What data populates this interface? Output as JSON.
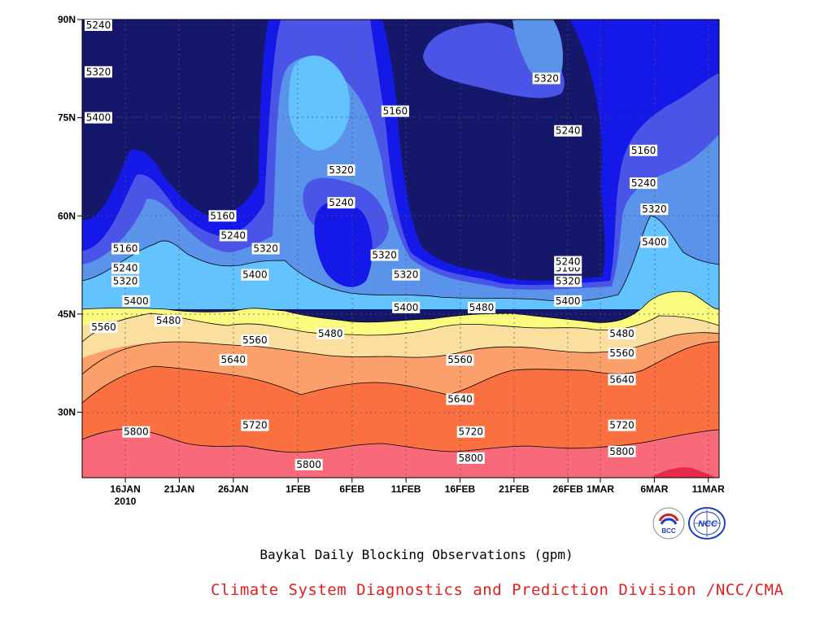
{
  "chart_data": {
    "type": "heatmap",
    "subtype": "filled-contour time-latitude section",
    "title": "Baykal Daily Blocking Observations (gpm)",
    "x_ticks": [
      "16JAN",
      "21JAN",
      "26JAN",
      "1FEB",
      "6FEB",
      "11FEB",
      "16FEB",
      "21FEB",
      "26FEB",
      "1MAR",
      "6MAR",
      "11MAR"
    ],
    "x_year_label": "2010",
    "x_range": [
      "2010-01-12",
      "2010-03-12"
    ],
    "y_ticks": [
      "30N",
      "45N",
      "60N",
      "75N",
      "90N"
    ],
    "y_range": [
      20,
      90
    ],
    "contour_levels": [
      5160,
      5240,
      5320,
      5400,
      5480,
      5560,
      5640,
      5720,
      5800
    ],
    "fill_colors": [
      "#15186a",
      "#1519e8",
      "#4a55e8",
      "#5b92ea",
      "#62c3ff",
      "#fbfb7f",
      "#fbdf9f",
      "#fba06b",
      "#fb7040",
      "#f86a7a",
      "#e82848"
    ],
    "contour_labels": [
      {
        "date": "2010-01-02",
        "lat": 90,
        "value": 5240
      },
      {
        "date": "2010-01-02",
        "lat": 82,
        "value": 5320
      },
      {
        "date": "2010-01-02",
        "lat": 75,
        "value": 5400
      },
      {
        "date": "2010-02-10",
        "lat": 76,
        "value": 5160
      },
      {
        "date": "2010-02-24",
        "lat": 81,
        "value": 5320
      },
      {
        "date": "2010-02-26",
        "lat": 73,
        "value": 5240
      },
      {
        "date": "2010-03-05",
        "lat": 70,
        "value": 5160
      },
      {
        "date": "2010-03-05",
        "lat": 65,
        "value": 5240
      },
      {
        "date": "2010-03-06",
        "lat": 61,
        "value": 5320
      },
      {
        "date": "2010-03-06",
        "lat": 56,
        "value": 5400
      },
      {
        "date": "2010-01-16",
        "lat": 55,
        "value": 5160
      },
      {
        "date": "2010-01-16",
        "lat": 52,
        "value": 5240
      },
      {
        "date": "2010-01-16",
        "lat": 50,
        "value": 5320
      },
      {
        "date": "2010-01-17",
        "lat": 47,
        "value": 5400
      },
      {
        "date": "2010-01-14",
        "lat": 43,
        "value": 5560
      },
      {
        "date": "2010-01-20",
        "lat": 44,
        "value": 5480
      },
      {
        "date": "2010-01-25",
        "lat": 60,
        "value": 5160
      },
      {
        "date": "2010-01-26",
        "lat": 57,
        "value": 5240
      },
      {
        "date": "2010-01-29",
        "lat": 55,
        "value": 5320
      },
      {
        "date": "2010-01-28",
        "lat": 51,
        "value": 5400
      },
      {
        "date": "2010-02-05",
        "lat": 67,
        "value": 5320
      },
      {
        "date": "2010-02-05",
        "lat": 62,
        "value": 5240
      },
      {
        "date": "2010-02-09",
        "lat": 54,
        "value": 5320
      },
      {
        "date": "2010-02-11",
        "lat": 51,
        "value": 5320
      },
      {
        "date": "2010-02-11",
        "lat": 46,
        "value": 5400
      },
      {
        "date": "2010-02-18",
        "lat": 46,
        "value": 5480
      },
      {
        "date": "2010-02-04",
        "lat": 42,
        "value": 5480
      },
      {
        "date": "2010-01-28",
        "lat": 41,
        "value": 5560
      },
      {
        "date": "2010-02-16",
        "lat": 38,
        "value": 5560
      },
      {
        "date": "2010-01-26",
        "lat": 38,
        "value": 5640
      },
      {
        "date": "2010-02-16",
        "lat": 32,
        "value": 5640
      },
      {
        "date": "2010-01-17",
        "lat": 27,
        "value": 5800
      },
      {
        "date": "2010-01-28",
        "lat": 28,
        "value": 5720
      },
      {
        "date": "2010-02-17",
        "lat": 27,
        "value": 5720
      },
      {
        "date": "2010-02-02",
        "lat": 22,
        "value": 5800
      },
      {
        "date": "2010-02-17",
        "lat": 23,
        "value": 5800
      },
      {
        "date": "2010-02-26",
        "lat": 52,
        "value": 5160
      },
      {
        "date": "2010-02-26",
        "lat": 53,
        "value": 5240
      },
      {
        "date": "2010-02-26",
        "lat": 50,
        "value": 5320
      },
      {
        "date": "2010-02-26",
        "lat": 47,
        "value": 5400
      },
      {
        "date": "2010-03-03",
        "lat": 42,
        "value": 5480
      },
      {
        "date": "2010-03-03",
        "lat": 39,
        "value": 5560
      },
      {
        "date": "2010-03-03",
        "lat": 35,
        "value": 5640
      },
      {
        "date": "2010-03-03",
        "lat": 28,
        "value": 5720
      },
      {
        "date": "2010-03-03",
        "lat": 24,
        "value": 5800
      }
    ]
  },
  "footer": {
    "credit": "Climate System Diagnostics and Prediction Division /NCC/CMA",
    "logo_left_text": "BCC",
    "logo_right_text": "NCC"
  }
}
